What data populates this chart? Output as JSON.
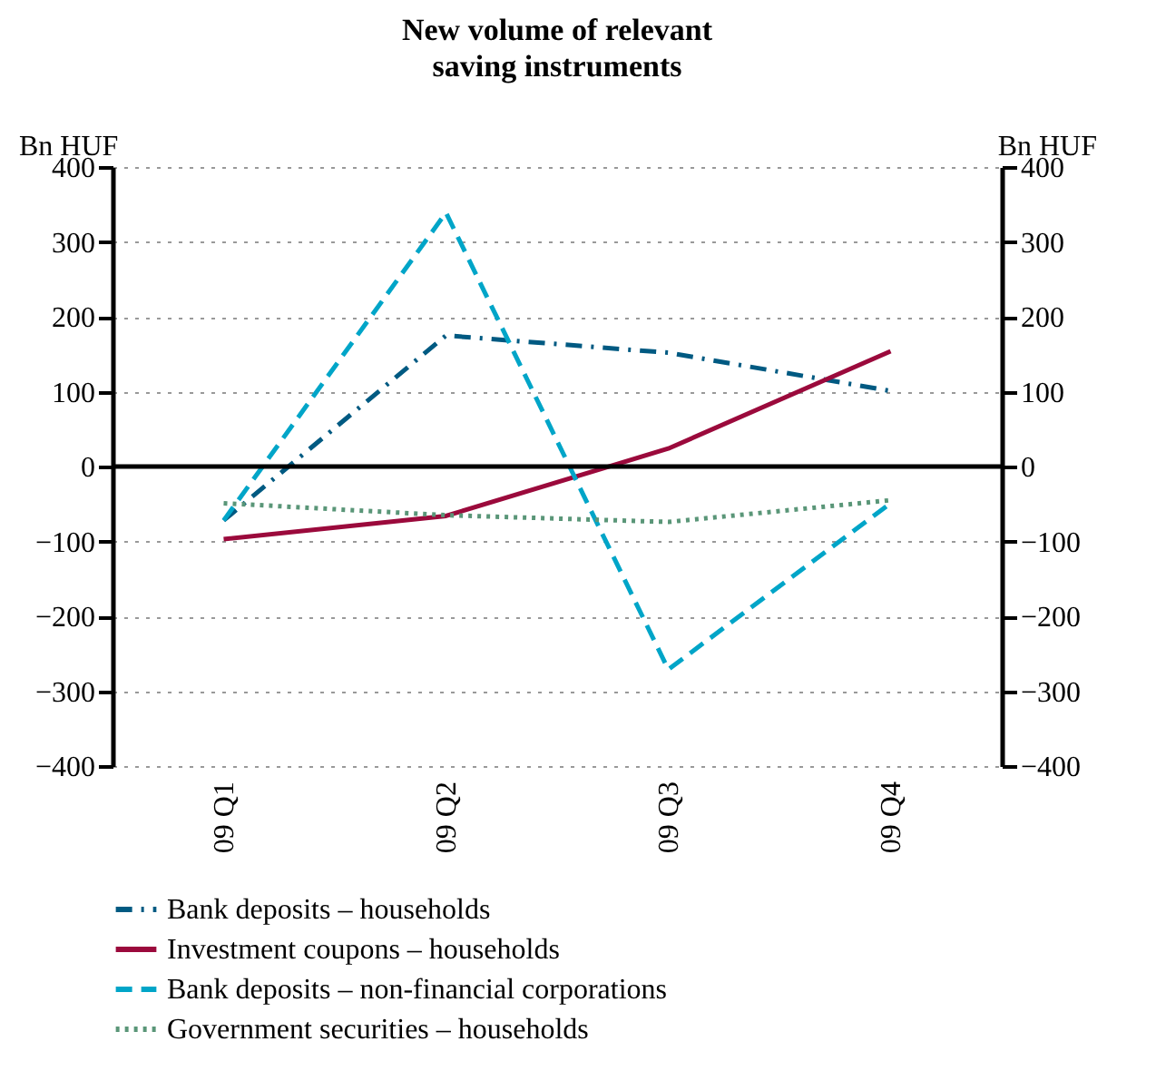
{
  "chart_data": {
    "type": "line",
    "title": "New volume of relevant saving instruments",
    "ylabel": "Bn HUF",
    "y2label": "Bn HUF",
    "categories": [
      "09 Q1",
      "09 Q2",
      "09 Q3",
      "09 Q4"
    ],
    "series": [
      {
        "name": "Bank deposits – households",
        "color": "#005a82",
        "line_style": "dashdot",
        "values": [
          -72,
          175,
          152,
          101
        ]
      },
      {
        "name": "Investment coupons – households",
        "color": "#9b0a3c",
        "line_style": "solid",
        "values": [
          -97,
          -66,
          24,
          154
        ]
      },
      {
        "name": "Bank deposits – non-financial corporations",
        "color": "#00a5c8",
        "line_style": "dashed",
        "values": [
          -72,
          339,
          -271,
          -49
        ]
      },
      {
        "name": "Government securities – households",
        "color": "#5a9678",
        "line_style": "dotted",
        "values": [
          -49,
          -65,
          -74,
          -45
        ]
      }
    ],
    "ylim": [
      -400,
      400
    ],
    "yticks": [
      -400,
      -300,
      -200,
      -100,
      0,
      100,
      200,
      300,
      400
    ],
    "y2lim": [
      -400,
      400
    ],
    "y2ticks": [
      -400,
      -300,
      -200,
      -100,
      0,
      100,
      200,
      300,
      400
    ],
    "ref_lines": [
      {
        "axis": "y",
        "value": 0,
        "color": "#000000"
      }
    ],
    "grid": "y",
    "legend": "bottom",
    "marker": "none"
  }
}
